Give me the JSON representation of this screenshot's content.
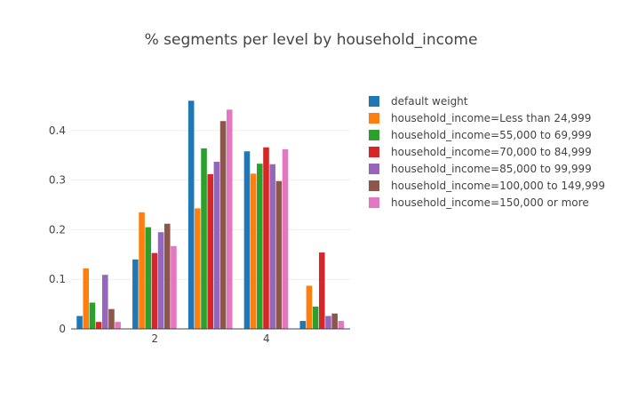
{
  "chart_data": {
    "type": "bar",
    "title": "% segments per level by household_income",
    "xlabel": "",
    "ylabel": "",
    "categories": [
      1,
      2,
      3,
      4,
      5
    ],
    "x_ticks": [
      2,
      4
    ],
    "y_ticks": [
      0,
      0.1,
      0.2,
      0.3,
      0.4
    ],
    "xlim": [
      0.5,
      5.5
    ],
    "ylim": [
      0,
      0.5
    ],
    "grid": true,
    "legend_position": "right",
    "series": [
      {
        "name": "default weight",
        "color": "#1f77b4",
        "values": [
          0.026,
          0.14,
          0.46,
          0.358,
          0.016
        ]
      },
      {
        "name": "household_income=Less than 24,999",
        "color": "#ff7f0e",
        "values": [
          0.122,
          0.235,
          0.243,
          0.313,
          0.087
        ]
      },
      {
        "name": "household_income=55,000 to 69,999",
        "color": "#2ca02c",
        "values": [
          0.053,
          0.205,
          0.364,
          0.333,
          0.045
        ]
      },
      {
        "name": "household_income=70,000 to 84,999",
        "color": "#d62728",
        "values": [
          0.014,
          0.153,
          0.312,
          0.366,
          0.154
        ]
      },
      {
        "name": "household_income=85,000 to 99,999",
        "color": "#9467bd",
        "values": [
          0.109,
          0.195,
          0.337,
          0.332,
          0.026
        ]
      },
      {
        "name": "household_income=100,000 to 149,999",
        "color": "#8c564b",
        "values": [
          0.04,
          0.212,
          0.419,
          0.298,
          0.031
        ]
      },
      {
        "name": "household_income=150,000 or more",
        "color": "#e377c2",
        "values": [
          0.014,
          0.167,
          0.442,
          0.362,
          0.016
        ]
      }
    ]
  }
}
